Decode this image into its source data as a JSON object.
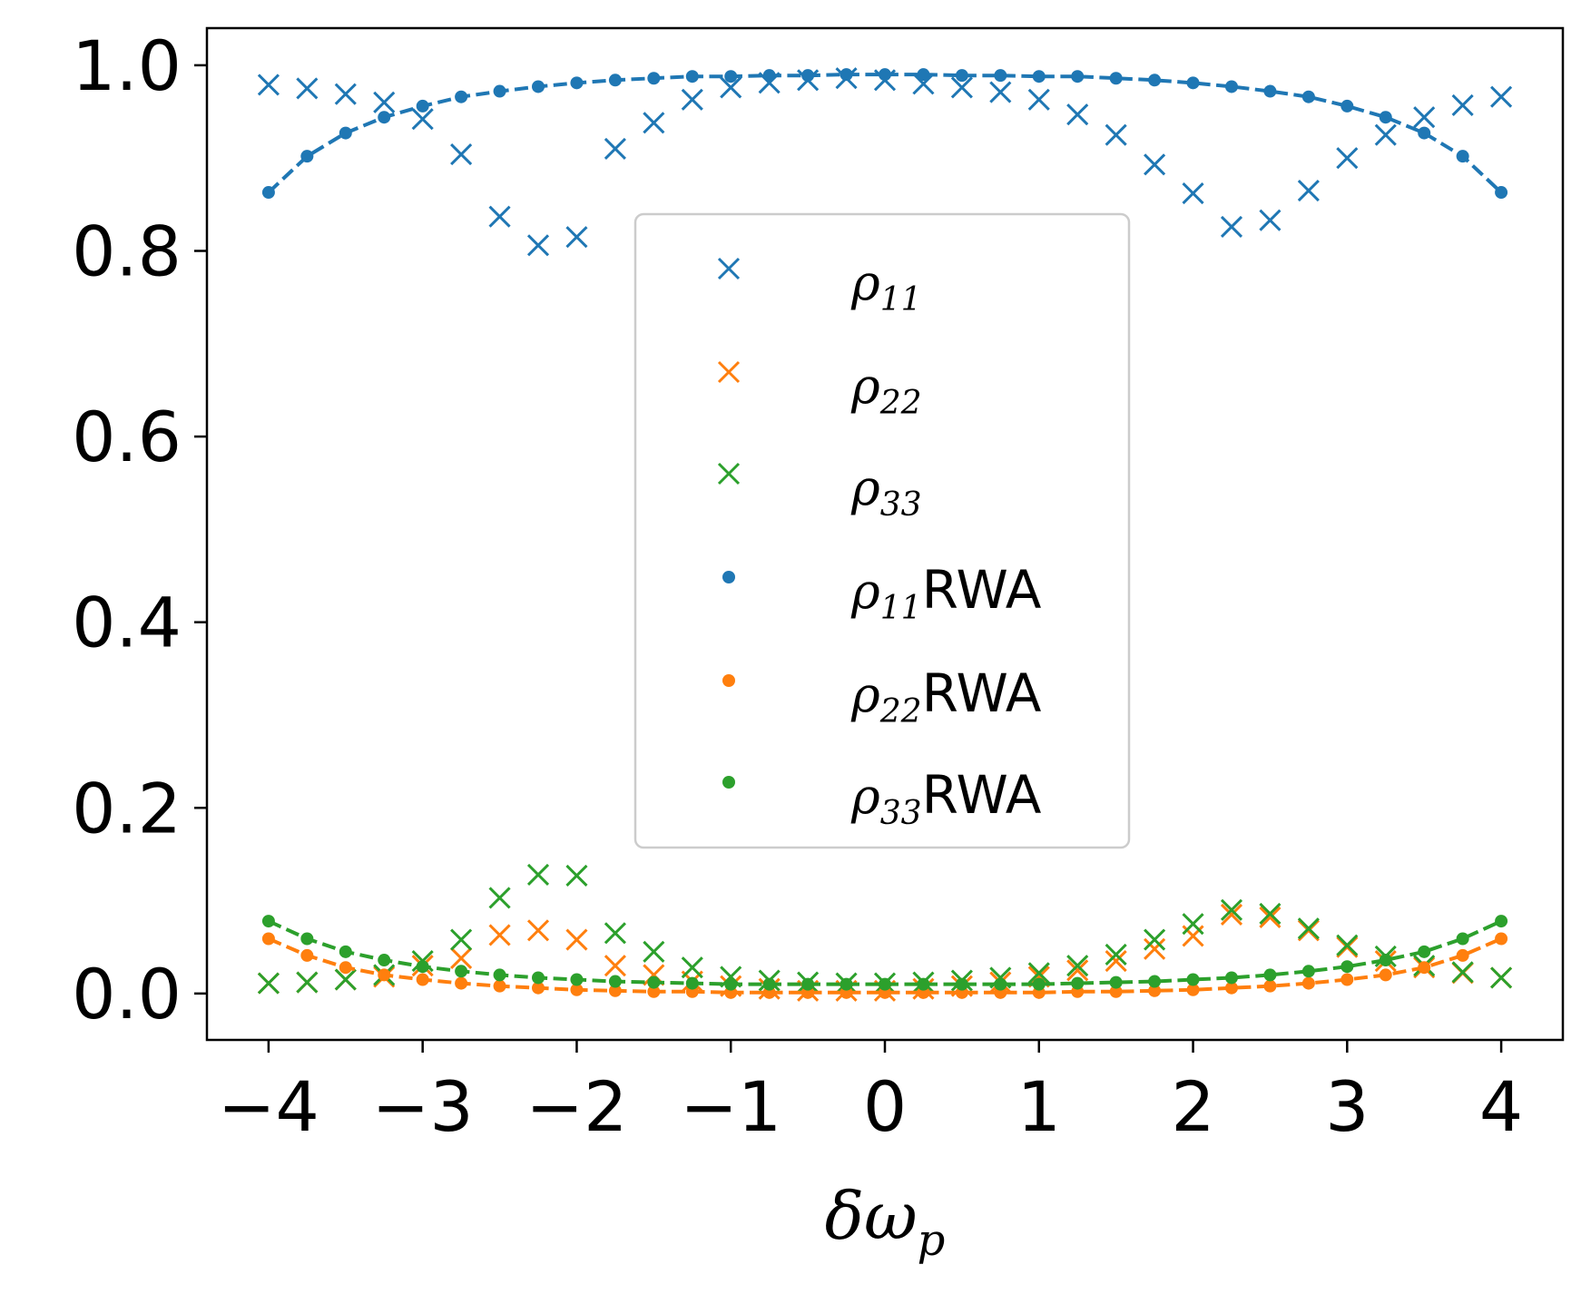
{
  "chart_data": {
    "type": "scatter",
    "xlabel_base": "δω",
    "xlabel_sub": "p",
    "ylabel": "",
    "xlim": [
      -4.4,
      4.4
    ],
    "ylim": [
      -0.05,
      1.04
    ],
    "x_ticks": [
      -4,
      -3,
      -2,
      -1,
      0,
      1,
      2,
      3,
      4
    ],
    "x_tick_labels": [
      "−4",
      "−3",
      "−2",
      "−1",
      "0",
      "1",
      "2",
      "3",
      "4"
    ],
    "y_ticks": [
      0.0,
      0.2,
      0.4,
      0.6,
      0.8,
      1.0
    ],
    "y_tick_labels": [
      "0.0",
      "0.2",
      "0.4",
      "0.6",
      "0.8",
      "1.0"
    ],
    "x": [
      -4,
      -3.75,
      -3.5,
      -3.25,
      -3,
      -2.75,
      -2.5,
      -2.25,
      -2,
      -1.75,
      -1.5,
      -1.25,
      -1,
      -0.75,
      -0.5,
      -0.25,
      0,
      0.25,
      0.5,
      0.75,
      1,
      1.25,
      1.5,
      1.75,
      2,
      2.25,
      2.5,
      2.75,
      3,
      3.25,
      3.5,
      3.75,
      4
    ],
    "legend": {
      "location": "center"
    },
    "series": [
      {
        "name": "ρ11",
        "label_base": "ρ",
        "label_sub": "11",
        "label_suffix": "",
        "marker": "x",
        "color": "#1f77b4",
        "line": false,
        "values": [
          0.979,
          0.975,
          0.969,
          0.96,
          0.942,
          0.904,
          0.837,
          0.806,
          0.815,
          0.91,
          0.938,
          0.963,
          0.976,
          0.981,
          0.984,
          0.986,
          0.984,
          0.98,
          0.976,
          0.971,
          0.963,
          0.947,
          0.925,
          0.893,
          0.862,
          0.826,
          0.833,
          0.865,
          0.9,
          0.925,
          0.944,
          0.957,
          0.966
        ]
      },
      {
        "name": "ρ22",
        "label_base": "ρ",
        "label_sub": "22",
        "label_suffix": "",
        "marker": "x",
        "color": "#ff7f0e",
        "line": false,
        "values": [
          0.011,
          0.012,
          0.015,
          0.018,
          0.03,
          0.038,
          0.063,
          0.068,
          0.058,
          0.03,
          0.02,
          0.013,
          0.008,
          0.005,
          0.003,
          0.003,
          0.003,
          0.005,
          0.008,
          0.012,
          0.018,
          0.025,
          0.035,
          0.048,
          0.062,
          0.085,
          0.082,
          0.068,
          0.05,
          0.035,
          0.028,
          0.022,
          0.017
        ]
      },
      {
        "name": "ρ33",
        "label_base": "ρ",
        "label_sub": "33",
        "label_suffix": "",
        "marker": "x",
        "color": "#2ca02c",
        "line": false,
        "values": [
          0.011,
          0.012,
          0.015,
          0.02,
          0.035,
          0.058,
          0.103,
          0.128,
          0.127,
          0.065,
          0.045,
          0.028,
          0.018,
          0.014,
          0.012,
          0.011,
          0.011,
          0.012,
          0.014,
          0.017,
          0.022,
          0.03,
          0.042,
          0.058,
          0.075,
          0.09,
          0.086,
          0.07,
          0.052,
          0.04,
          0.03,
          0.023,
          0.017
        ]
      },
      {
        "name": "ρ11RWA",
        "label_base": "ρ",
        "label_sub": "11",
        "label_suffix": "RWA",
        "marker": "dot",
        "color": "#1f77b4",
        "line": true,
        "values": [
          0.863,
          0.902,
          0.927,
          0.944,
          0.956,
          0.966,
          0.972,
          0.977,
          0.981,
          0.984,
          0.986,
          0.988,
          0.988,
          0.989,
          0.989,
          0.99,
          0.99,
          0.99,
          0.989,
          0.989,
          0.988,
          0.988,
          0.986,
          0.984,
          0.981,
          0.977,
          0.972,
          0.966,
          0.956,
          0.944,
          0.927,
          0.902,
          0.863
        ]
      },
      {
        "name": "ρ22RWA",
        "label_base": "ρ",
        "label_sub": "22",
        "label_suffix": "RWA",
        "marker": "dot",
        "color": "#ff7f0e",
        "line": true,
        "values": [
          0.059,
          0.041,
          0.028,
          0.02,
          0.015,
          0.011,
          0.008,
          0.006,
          0.004,
          0.003,
          0.002,
          0.002,
          0.001,
          0.001,
          0.001,
          0.001,
          0.001,
          0.001,
          0.001,
          0.001,
          0.001,
          0.002,
          0.002,
          0.003,
          0.004,
          0.006,
          0.008,
          0.011,
          0.015,
          0.02,
          0.028,
          0.041,
          0.059
        ]
      },
      {
        "name": "ρ33RWA",
        "label_base": "ρ",
        "label_sub": "33",
        "label_suffix": "RWA",
        "marker": "dot",
        "color": "#2ca02c",
        "line": true,
        "values": [
          0.078,
          0.059,
          0.045,
          0.036,
          0.029,
          0.024,
          0.02,
          0.017,
          0.015,
          0.013,
          0.012,
          0.011,
          0.01,
          0.01,
          0.01,
          0.01,
          0.01,
          0.01,
          0.01,
          0.01,
          0.01,
          0.011,
          0.012,
          0.013,
          0.015,
          0.017,
          0.02,
          0.024,
          0.029,
          0.036,
          0.045,
          0.059,
          0.078
        ]
      }
    ]
  }
}
